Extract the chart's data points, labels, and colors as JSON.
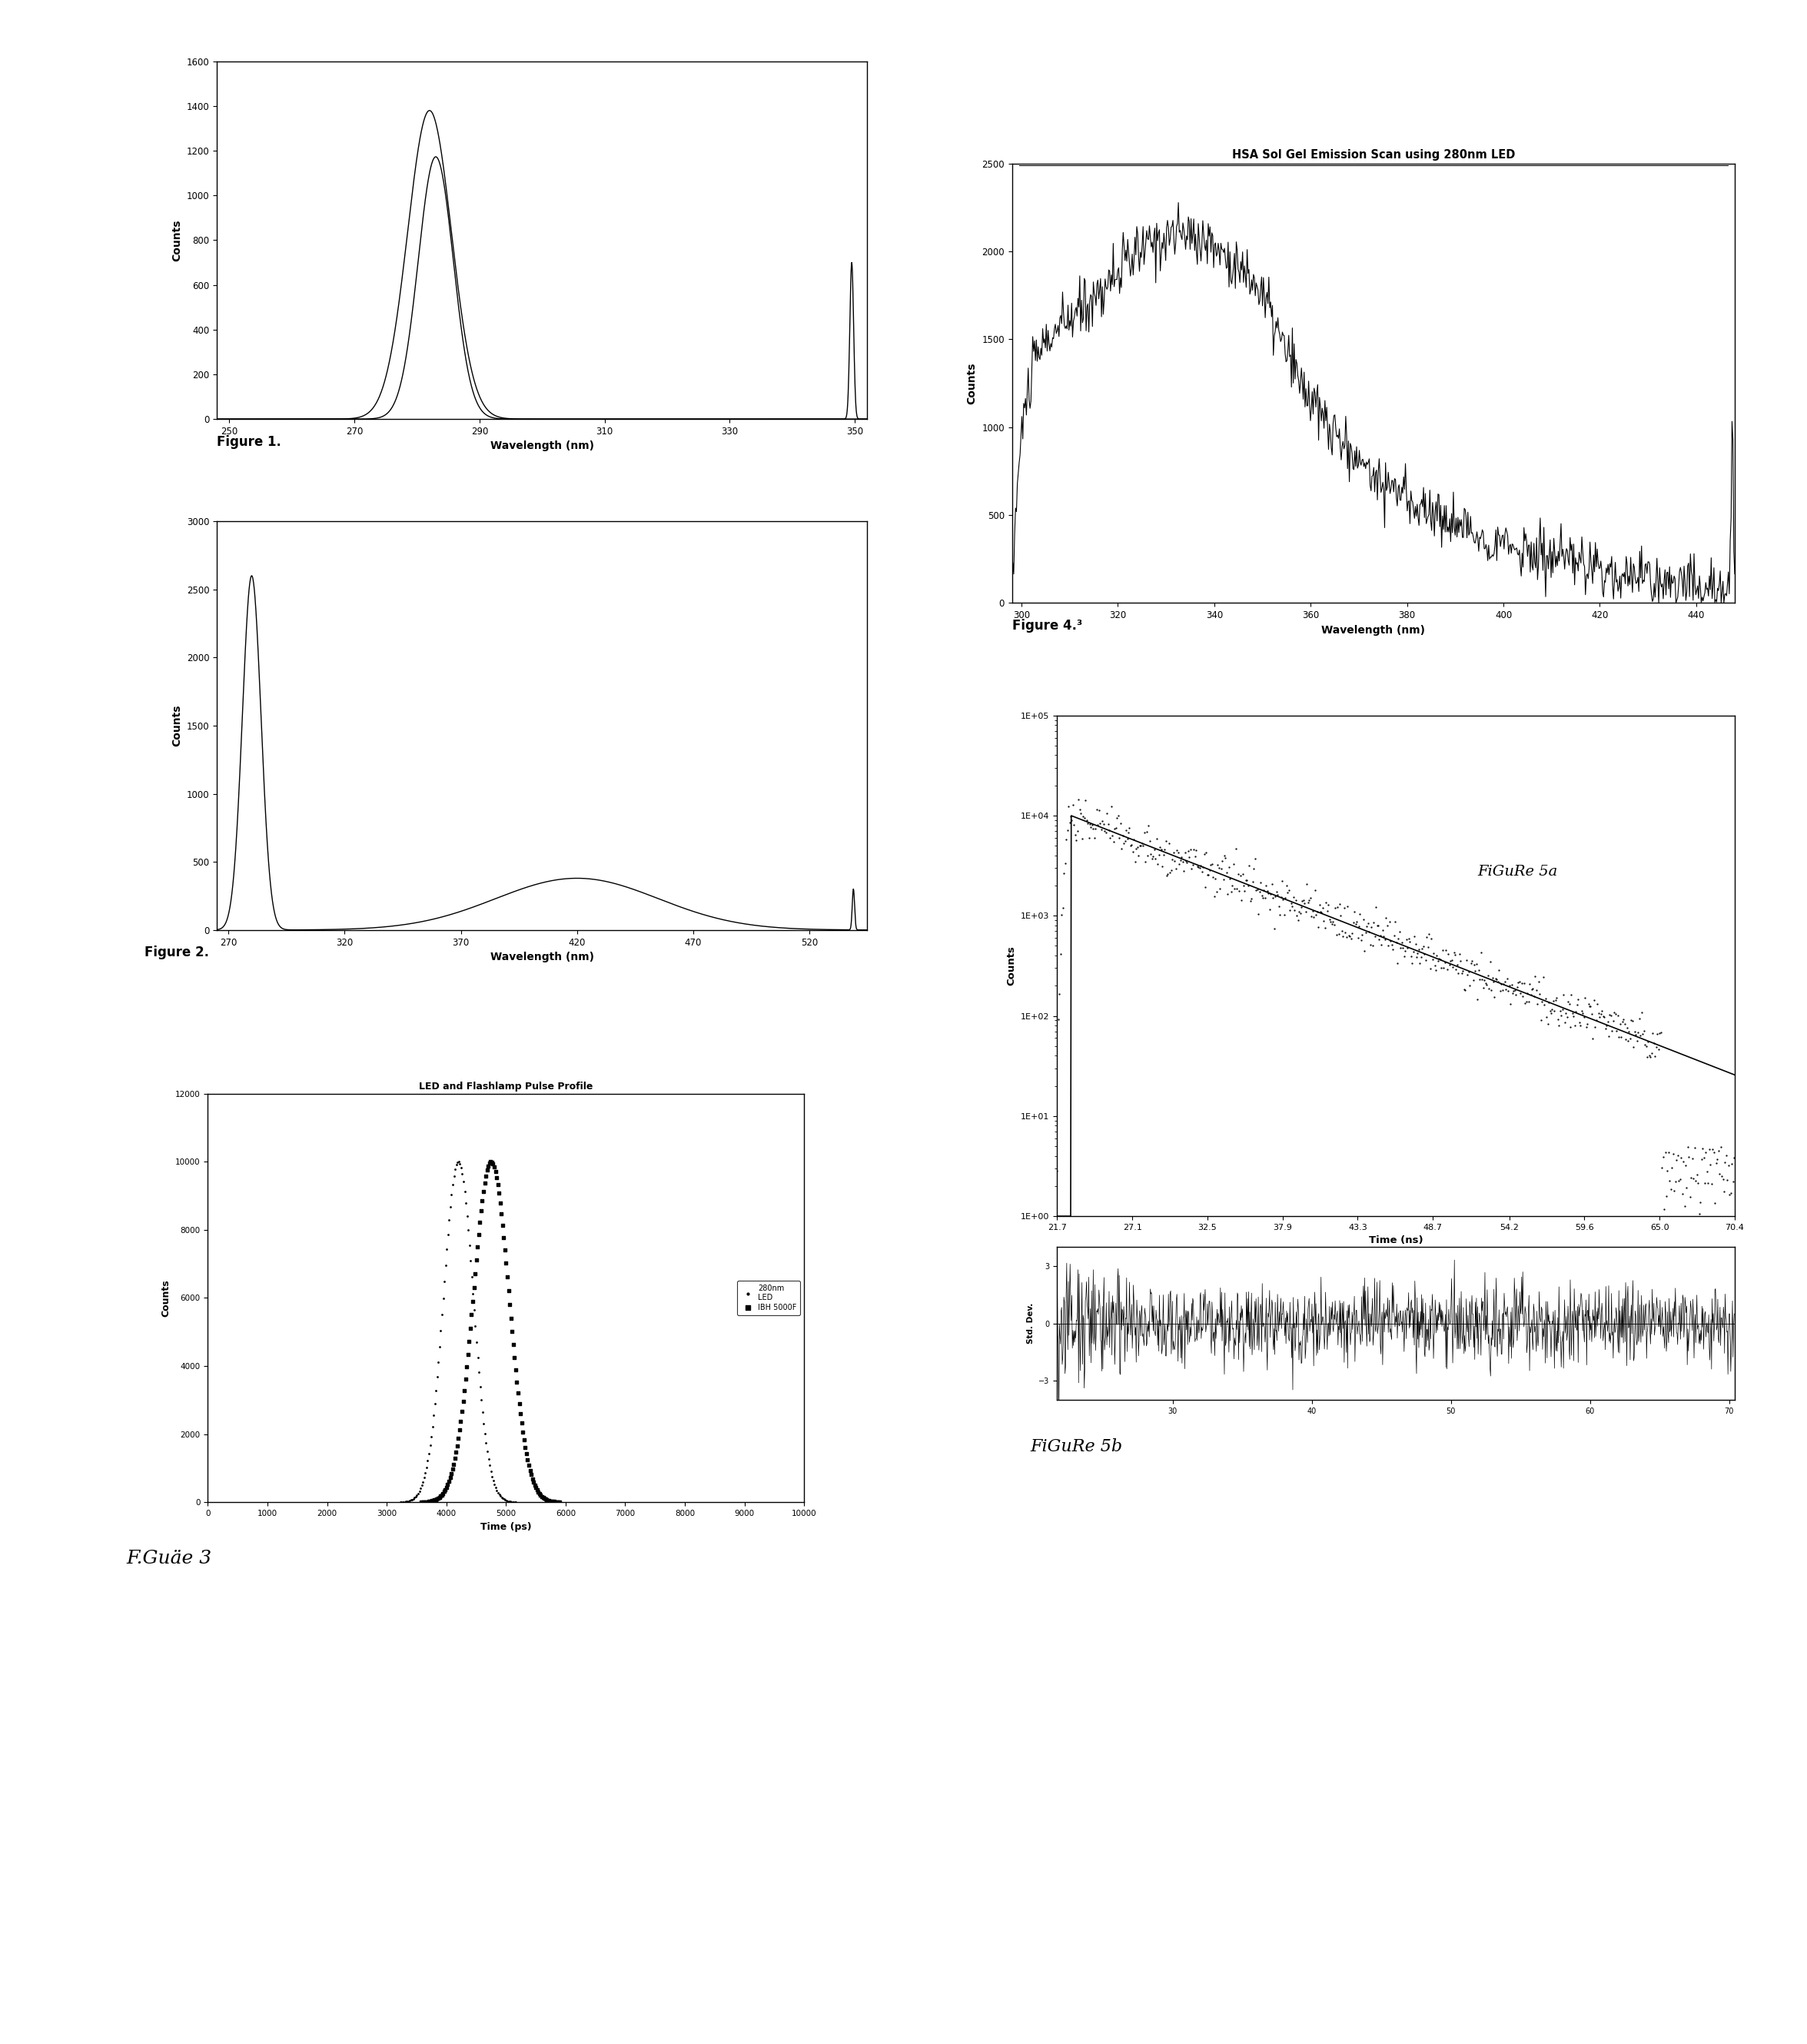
{
  "fig1": {
    "xlabel": "Wavelength (nm)",
    "ylabel": "Counts",
    "xlim": [
      248,
      352
    ],
    "ylim": [
      0,
      1600
    ],
    "xticks": [
      250,
      270,
      290,
      310,
      330,
      350
    ],
    "yticks": [
      0,
      200,
      400,
      600,
      800,
      1000,
      1200,
      1400,
      1600
    ],
    "peak_x": 282,
    "peak_sigma": 3.5,
    "peak_y": 1380,
    "spike_x": 349.5,
    "spike_y": 700,
    "caption": "Figure 1."
  },
  "fig2": {
    "xlabel": "Wavelength (nm)",
    "ylabel": "Counts",
    "xlim": [
      265,
      545
    ],
    "ylim": [
      0,
      3000
    ],
    "xticks": [
      270,
      320,
      370,
      420,
      470,
      520
    ],
    "yticks": [
      0,
      500,
      1000,
      1500,
      2000,
      2500,
      3000
    ],
    "peak1_x": 280,
    "peak1_y": 2600,
    "peak1_sigma": 4,
    "peak2_x": 420,
    "peak2_y": 380,
    "peak2_sigma": 35,
    "spike_x": 539,
    "spike_y": 300,
    "caption": "Figure 2."
  },
  "fig3": {
    "title": "LED and Flashlamp Pulse Profile",
    "xlabel": "Time (ps)",
    "ylabel": "Counts",
    "xlim": [
      0,
      10000
    ],
    "ylim": [
      0,
      12000
    ],
    "xticks": [
      0,
      1000,
      2000,
      3000,
      4000,
      5000,
      6000,
      7000,
      8000,
      9000,
      10000
    ],
    "yticks": [
      0,
      2000,
      4000,
      6000,
      8000,
      10000,
      12000
    ],
    "led_peak_x": 4200,
    "led_sigma": 250,
    "flash_peak_x": 4750,
    "flash_sigma": 300,
    "pulse_peak": 10000,
    "legend": [
      "280nm\nLED",
      "IBH 5000F"
    ],
    "caption": "F.Guäe 3"
  },
  "fig4": {
    "title": "HSA Sol Gel Emission Scan using 280nm LED",
    "xlabel": "Wavelength (nm)",
    "ylabel": "Counts",
    "xlim": [
      298,
      448
    ],
    "ylim": [
      0,
      2500
    ],
    "xticks": [
      300,
      320,
      340,
      360,
      380,
      400,
      420,
      440
    ],
    "yticks": [
      0,
      500,
      1000,
      1500,
      2000,
      2500
    ],
    "caption": "Figure 4.³"
  },
  "fig5a": {
    "xlabel": "Time (ns)",
    "ylabel": "Counts",
    "xlim": [
      21.7,
      70.4
    ],
    "xticks": [
      21.7,
      27.1,
      32.5,
      37.9,
      43.3,
      48.7,
      54.2,
      59.6,
      65.0,
      70.4
    ],
    "ylim_log": [
      1,
      100000
    ],
    "yticks_log": [
      1,
      10,
      100,
      1000,
      10000,
      100000
    ],
    "ytick_labels": [
      "1E+00",
      "1E+01",
      "1E+02",
      "1E+03",
      "1E+04",
      "1E+05"
    ],
    "caption": "FiGuRe 5a"
  },
  "fig5b": {
    "ylabel": "Std. Dev.",
    "xlim": [
      21.7,
      70.4
    ],
    "ylim": [
      -4,
      4
    ],
    "yticks": [
      -3,
      0,
      3
    ],
    "caption": "FiGuRe 5b"
  },
  "bg": "#ffffff",
  "black": "#000000"
}
